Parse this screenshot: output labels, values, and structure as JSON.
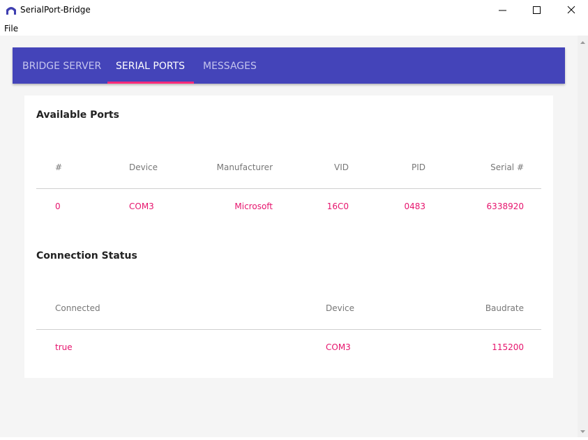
{
  "window": {
    "title": "SerialPort-Bridge",
    "menu": [
      "File"
    ]
  },
  "tabs": [
    "BRIDGE SERVER",
    "SERIAL PORTS",
    "MESSAGES"
  ],
  "available_ports": {
    "title": "Available Ports",
    "headers": [
      "#",
      "Device",
      "Manufacturer",
      "VID",
      "PID",
      "Serial #"
    ],
    "rows": [
      [
        "0",
        "COM3",
        "Microsoft",
        "16C0",
        "0483",
        "6338920"
      ]
    ]
  },
  "connection_status": {
    "title": "Connection Status",
    "headers": [
      "Connected",
      "Device",
      "Baudrate"
    ],
    "rows": [
      [
        "true",
        "COM3",
        "115200"
      ]
    ]
  }
}
